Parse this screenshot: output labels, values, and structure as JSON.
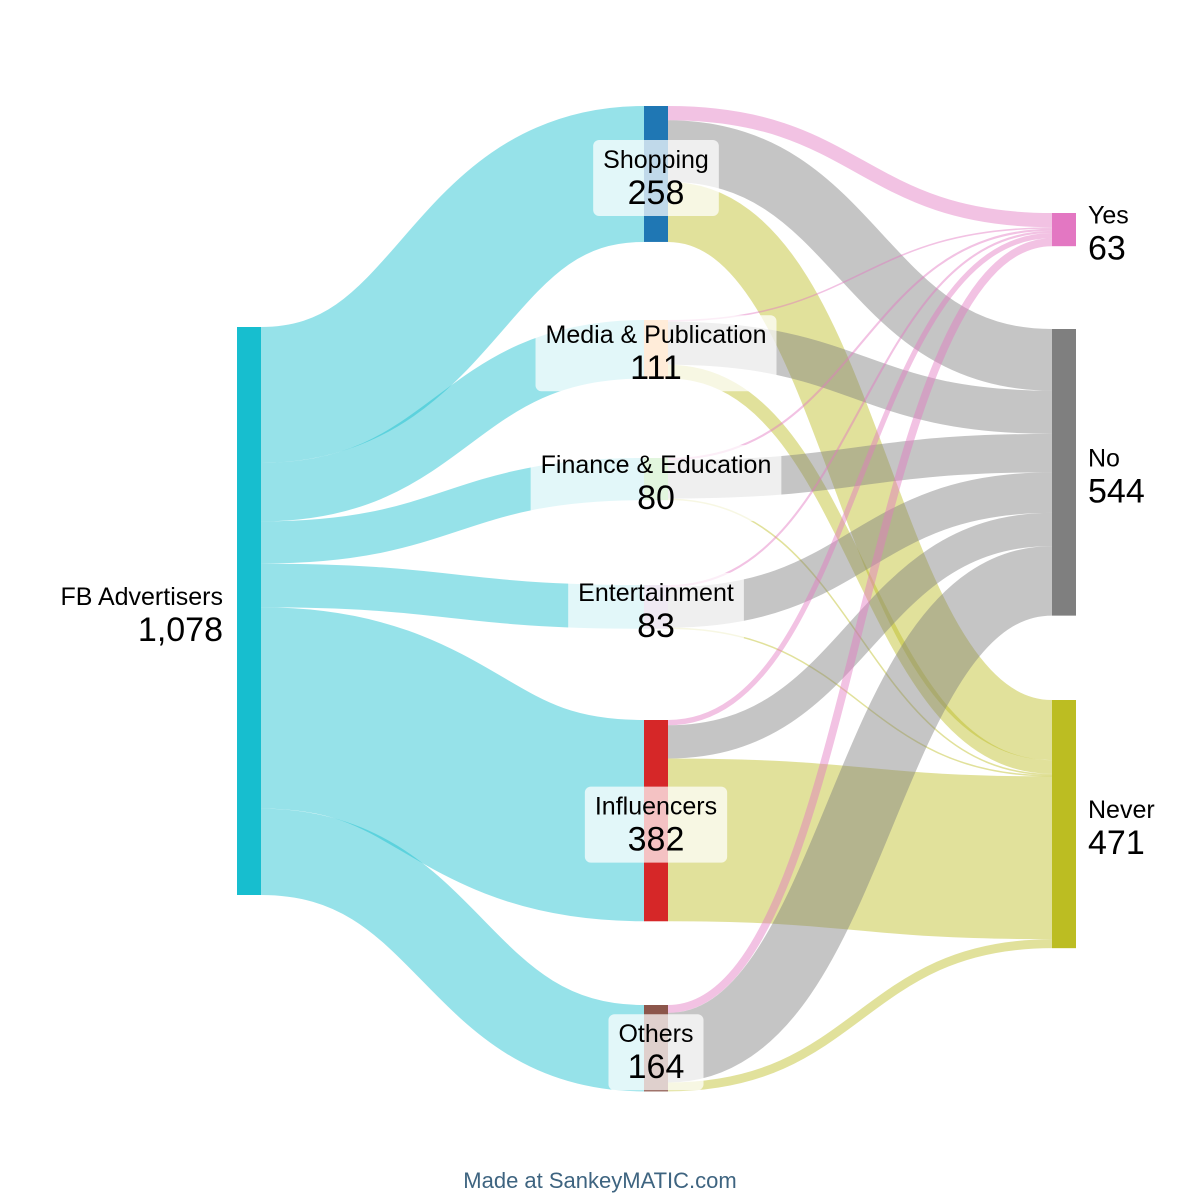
{
  "diagram": {
    "type": "sankey",
    "nodes": [
      {
        "id": "fb",
        "label": "FB Advertisers",
        "value_label": "1,078",
        "value": 1078,
        "color": "#17becf",
        "column": 0
      },
      {
        "id": "shopping",
        "label": "Shopping",
        "value_label": "258",
        "value": 258,
        "color": "#1f77b4",
        "column": 1
      },
      {
        "id": "media",
        "label": "Media & Publication",
        "value_label": "111",
        "value": 111,
        "color": "#ffbb78",
        "column": 1
      },
      {
        "id": "finance",
        "label": "Finance & Education",
        "value_label": "80",
        "value": 80,
        "color": "#98df8a",
        "column": 1
      },
      {
        "id": "entertainment",
        "label": "Entertainment",
        "value_label": "83",
        "value": 83,
        "color": "#c5b0d5",
        "column": 1
      },
      {
        "id": "influencers",
        "label": "Influencers",
        "value_label": "382",
        "value": 382,
        "color": "#d62728",
        "column": 1
      },
      {
        "id": "others",
        "label": "Others",
        "value_label": "164",
        "value": 164,
        "color": "#8c564b",
        "column": 1
      },
      {
        "id": "yes",
        "label": "Yes",
        "value_label": "63",
        "value": 63,
        "color": "#e377c2",
        "column": 2
      },
      {
        "id": "no",
        "label": "No",
        "value_label": "544",
        "value": 544,
        "color": "#7f7f7f",
        "column": 2
      },
      {
        "id": "never",
        "label": "Never",
        "value_label": "471",
        "value": 471,
        "color": "#bcbd22",
        "column": 2
      }
    ],
    "links": [
      {
        "source": "fb",
        "target": "shopping",
        "value": 258
      },
      {
        "source": "fb",
        "target": "media",
        "value": 111
      },
      {
        "source": "fb",
        "target": "finance",
        "value": 80
      },
      {
        "source": "fb",
        "target": "entertainment",
        "value": 83
      },
      {
        "source": "fb",
        "target": "influencers",
        "value": 382
      },
      {
        "source": "fb",
        "target": "others",
        "value": 164
      },
      {
        "source": "shopping",
        "target": "yes",
        "value": 27
      },
      {
        "source": "shopping",
        "target": "no",
        "value": 117
      },
      {
        "source": "shopping",
        "target": "never",
        "value": 114
      },
      {
        "source": "media",
        "target": "yes",
        "value": 3
      },
      {
        "source": "media",
        "target": "no",
        "value": 82
      },
      {
        "source": "media",
        "target": "never",
        "value": 26
      },
      {
        "source": "finance",
        "target": "yes",
        "value": 4
      },
      {
        "source": "finance",
        "target": "no",
        "value": 73
      },
      {
        "source": "finance",
        "target": "never",
        "value": 3
      },
      {
        "source": "entertainment",
        "target": "yes",
        "value": 4
      },
      {
        "source": "entertainment",
        "target": "no",
        "value": 77
      },
      {
        "source": "entertainment",
        "target": "never",
        "value": 2
      },
      {
        "source": "influencers",
        "target": "yes",
        "value": 10
      },
      {
        "source": "influencers",
        "target": "no",
        "value": 63
      },
      {
        "source": "influencers",
        "target": "never",
        "value": 309
      },
      {
        "source": "others",
        "target": "yes",
        "value": 15
      },
      {
        "source": "others",
        "target": "no",
        "value": 132
      },
      {
        "source": "others",
        "target": "never",
        "value": 17
      }
    ]
  },
  "footer": {
    "credit": "Made at SankeyMATIC.com"
  }
}
